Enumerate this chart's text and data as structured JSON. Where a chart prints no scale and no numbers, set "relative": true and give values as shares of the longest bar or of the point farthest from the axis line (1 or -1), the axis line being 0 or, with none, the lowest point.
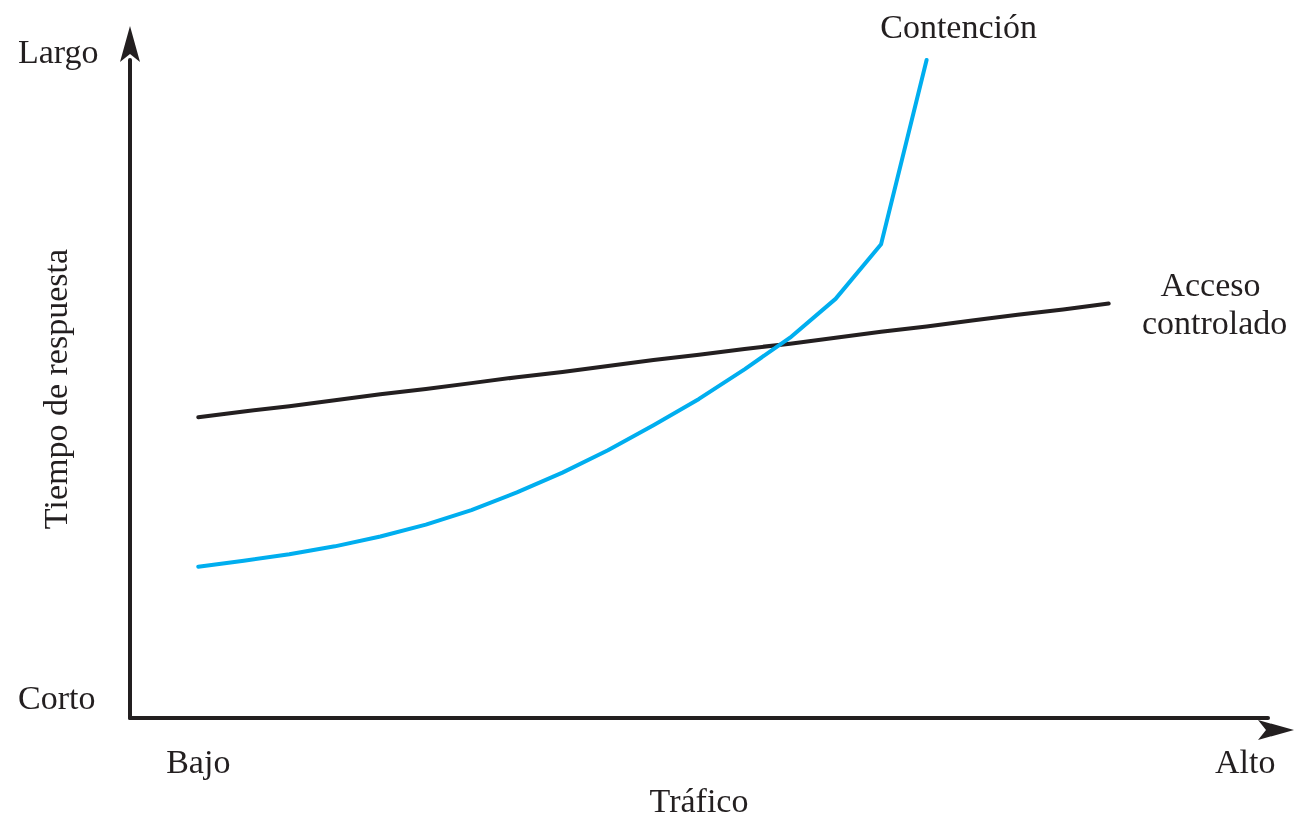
{
  "chart_data": {
    "type": "line",
    "relative": true,
    "xlabel": "Tráfico",
    "ylabel": "Tiempo de respuesta",
    "annotations": [
      "Corto",
      "Largo"
    ],
    "legend": false,
    "grid": false,
    "marker": "none",
    "line_style": "solid",
    "categories": [
      null,
      "Bajo",
      null,
      null,
      null,
      null,
      null,
      null,
      null,
      null,
      null,
      null,
      null,
      null,
      null,
      null,
      null,
      null,
      null,
      null,
      null,
      null,
      null,
      null,
      "Alto"
    ],
    "series": [
      {
        "name": "Acceso controlado",
        "color": "#231f20",
        "values": [
          null,
          0.457,
          0.466,
          0.474,
          0.483,
          0.492,
          0.5,
          0.509,
          0.518,
          0.526,
          0.535,
          0.544,
          0.552,
          0.561,
          0.569,
          0.578,
          0.587,
          0.595,
          0.604,
          0.613,
          0.621,
          0.63,
          null,
          null,
          null
        ]
      },
      {
        "name": "Contención",
        "color": "#00aeef",
        "values": [
          null,
          0.23,
          0.239,
          0.249,
          0.261,
          0.276,
          0.294,
          0.316,
          0.343,
          0.373,
          0.407,
          0.445,
          0.485,
          0.53,
          0.578,
          0.637,
          0.72,
          1.0,
          null,
          null,
          null,
          null,
          null,
          null,
          null
        ]
      }
    ]
  }
}
